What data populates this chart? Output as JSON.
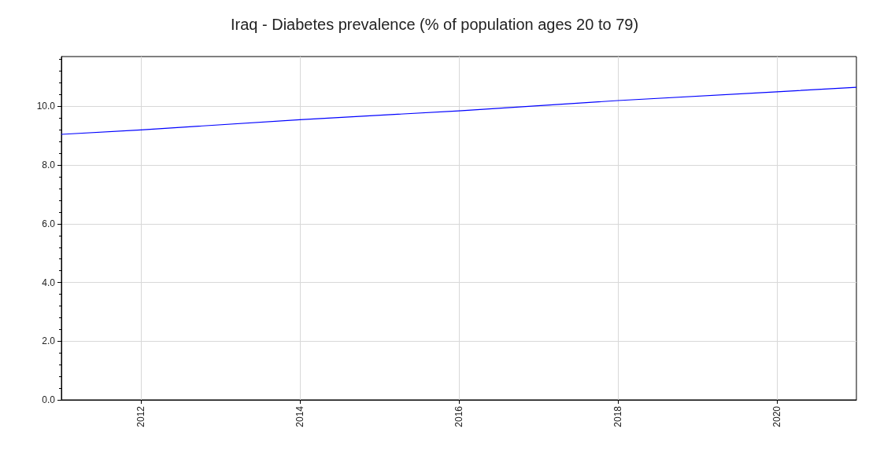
{
  "chart_data": {
    "type": "line",
    "title": "Iraq - Diabetes prevalence (% of population ages 20 to 79)",
    "x": [
      2011,
      2012,
      2014,
      2016,
      2018,
      2020,
      2021
    ],
    "series": [
      {
        "color": "#0000ff",
        "values": [
          9.05,
          9.2,
          9.55,
          9.85,
          10.2,
          10.5,
          10.65
        ]
      }
    ],
    "xlim": [
      2011,
      2021
    ],
    "xticks": [
      2012,
      2014,
      2016,
      2018,
      2020
    ],
    "ylim": [
      0,
      11.7
    ],
    "yticks": [
      {
        "value": 0,
        "label": "0.0"
      },
      {
        "value": 2,
        "label": "2.0"
      },
      {
        "value": 4,
        "label": "4.0"
      },
      {
        "value": 6,
        "label": "6.0"
      },
      {
        "value": 8,
        "label": "8.0"
      },
      {
        "value": 10,
        "label": "10.0"
      }
    ],
    "grid": true,
    "marker": "none",
    "line_style": "solid"
  }
}
